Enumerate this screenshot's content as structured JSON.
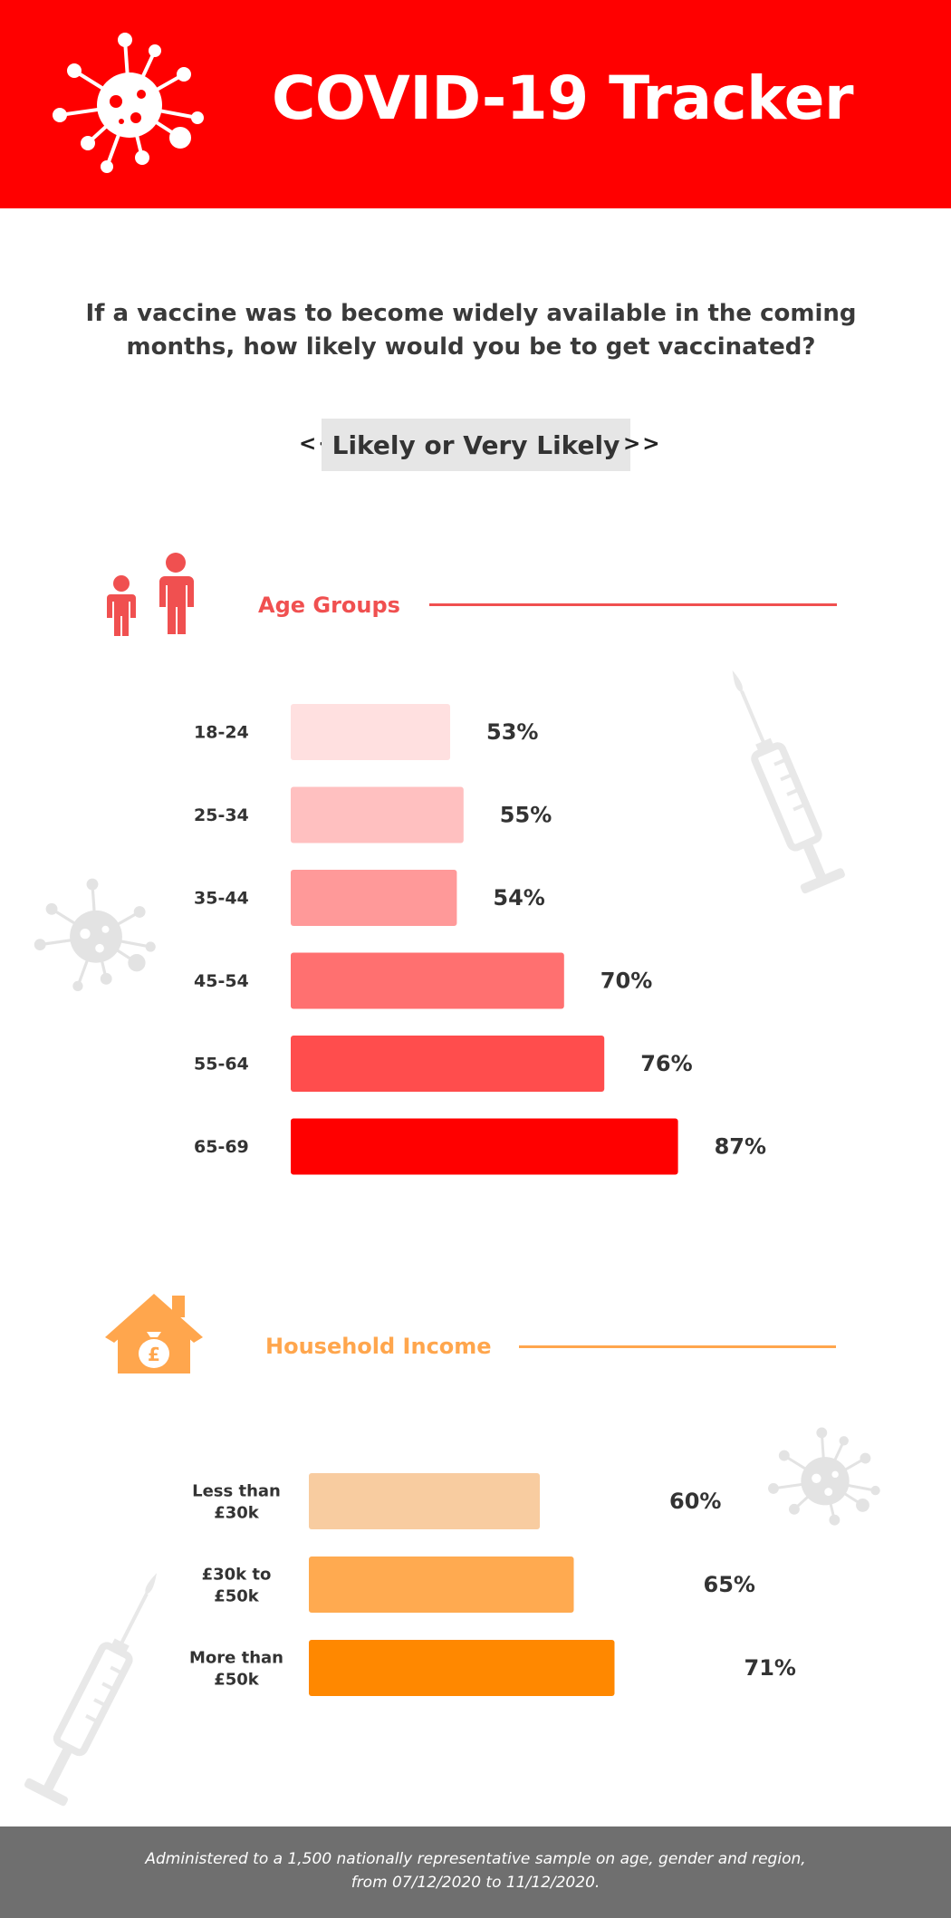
{
  "header": {
    "title": "COVID-19 Tracker",
    "background_color": "#ff0000",
    "logo_icon": "virus-icon"
  },
  "question": "If a vaccine was to become widely available in the coming months, how likely would you be to get vaccinated?",
  "selector": {
    "prev_label": "<<",
    "current_label": "Likely or Very Likely",
    "next_label": ">>"
  },
  "sections": {
    "age": {
      "title": "Age Groups",
      "icon": "family-icon",
      "color": "#f05050"
    },
    "income": {
      "title": "Household Income",
      "icon": "house-money-bag-icon",
      "color": "#ffa64d"
    }
  },
  "chart_data": [
    {
      "type": "bar",
      "orientation": "horizontal",
      "title": "Age Groups",
      "categories": [
        "18-24",
        "25-34",
        "35-44",
        "45-54",
        "55-64",
        "65-69"
      ],
      "values": [
        53,
        55,
        54,
        70,
        76,
        87
      ],
      "value_labels": [
        "53%",
        "55%",
        "54%",
        "70%",
        "76%",
        "87%"
      ],
      "unit": "%",
      "colors": [
        "#ffe0e0",
        "#ffc0c0",
        "#ff9999",
        "#ff7070",
        "#ff4d4d",
        "#ff0000"
      ],
      "grid": false
    },
    {
      "type": "bar",
      "orientation": "horizontal",
      "title": "Household Income",
      "categories": [
        [
          "Less than",
          "£30k"
        ],
        [
          "£30k to",
          "£50k"
        ],
        [
          "More than",
          "£50k"
        ]
      ],
      "values": [
        60,
        65,
        71
      ],
      "value_labels": [
        "60%",
        "65%",
        "71%"
      ],
      "unit": "%",
      "colors": [
        "#f8cca0",
        "#ffaa50",
        "#ff8800"
      ],
      "grid": false
    }
  ],
  "footer": {
    "text": "Administered to a 1,500 nationally representative sample on age, gender and region, from 07/12/2020 to 11/12/2020.",
    "background_color": "#6f6f6f"
  }
}
